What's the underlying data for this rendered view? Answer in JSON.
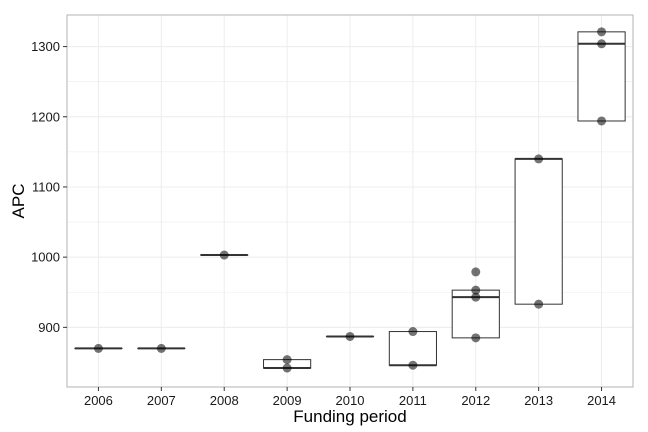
{
  "chart_data": {
    "type": "boxplot",
    "title": "",
    "xlabel": "Funding period",
    "ylabel": "APC",
    "ylim": [
      815,
      1345
    ],
    "yticks": [
      900,
      1000,
      1100,
      1200,
      1300
    ],
    "grid": true,
    "categories": [
      "2006",
      "2007",
      "2008",
      "2009",
      "2010",
      "2011",
      "2012",
      "2013",
      "2014"
    ],
    "boxes": [
      {
        "q1": 870,
        "median": 870,
        "q3": 870
      },
      {
        "q1": 870,
        "median": 870,
        "q3": 870
      },
      {
        "q1": 1003,
        "median": 1003,
        "q3": 1003
      },
      {
        "q1": 842,
        "median": 842,
        "q3": 854
      },
      {
        "q1": 887,
        "median": 887,
        "q3": 887
      },
      {
        "q1": 846,
        "median": 846,
        "q3": 894
      },
      {
        "q1": 885,
        "median": 943,
        "q3": 953
      },
      {
        "q1": 933,
        "median": 1140,
        "q3": 1140
      },
      {
        "q1": 1194,
        "median": 1304,
        "q3": 1321
      }
    ],
    "points": [
      [
        870
      ],
      [
        870
      ],
      [
        1003
      ],
      [
        854,
        842
      ],
      [
        887
      ],
      [
        894,
        846
      ],
      [
        979,
        953,
        943,
        885
      ],
      [
        1140,
        933
      ],
      [
        1321,
        1304,
        1194
      ]
    ],
    "colors": {
      "panel_border": "#b3b3b3",
      "grid": "#ececec",
      "box": "#333333",
      "point": "#000000"
    }
  }
}
